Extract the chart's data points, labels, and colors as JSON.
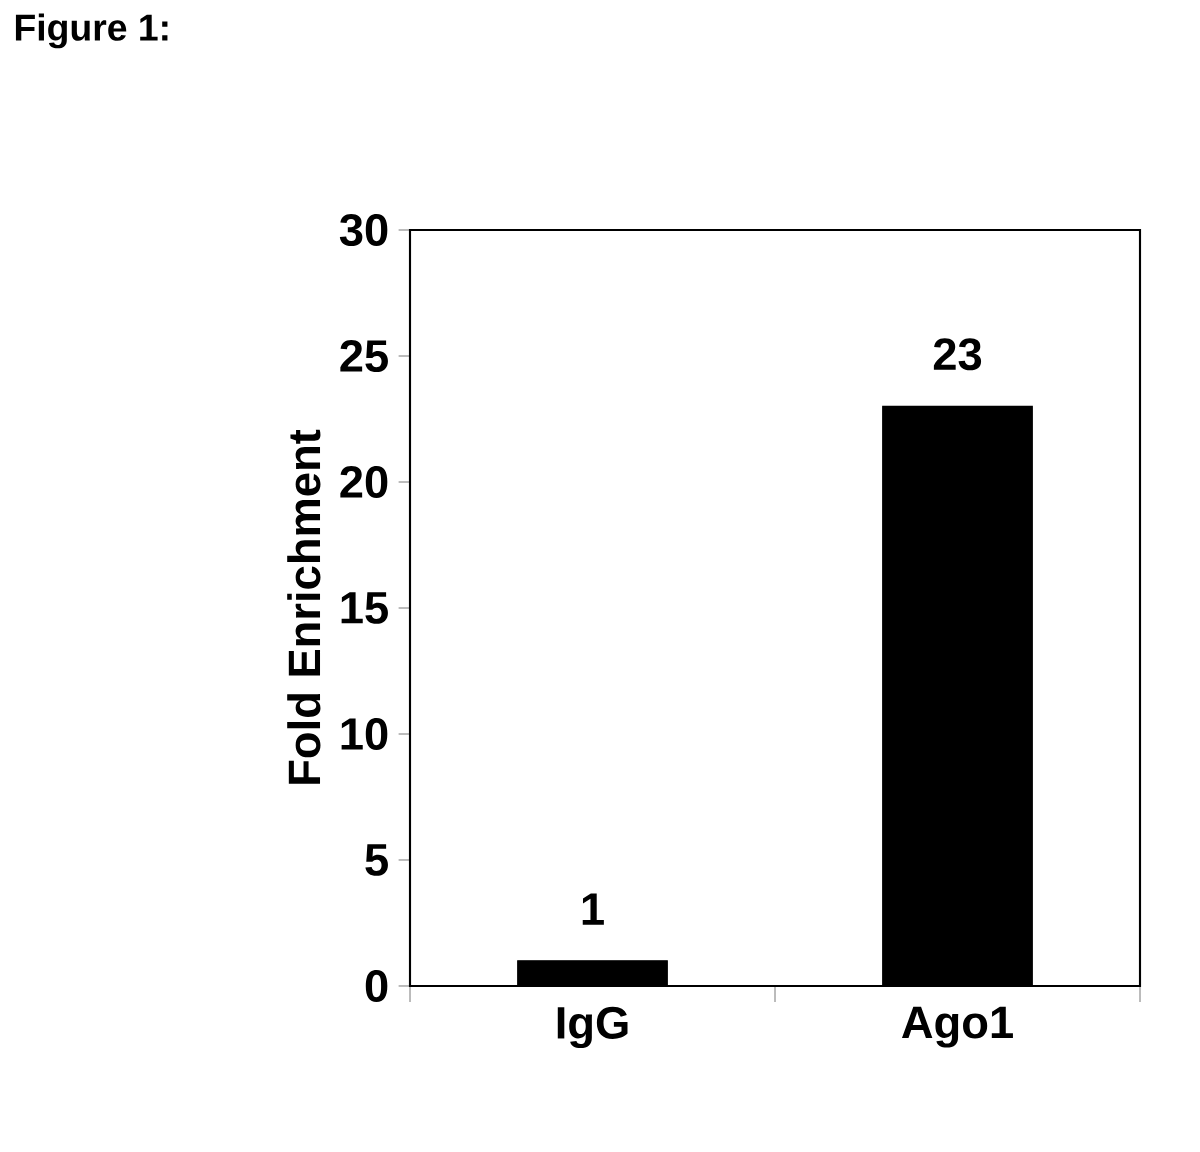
{
  "chart_data": {
    "type": "bar",
    "title": "Figure 1:",
    "ylabel": "Fold Enrichment",
    "categories": [
      "IgG",
      "Ago1"
    ],
    "values": [
      1,
      23
    ],
    "color": "#000000",
    "data_labels": true,
    "ylim": [
      0,
      30
    ],
    "yticks": [
      0,
      5,
      10,
      15,
      20,
      25,
      30
    ]
  }
}
